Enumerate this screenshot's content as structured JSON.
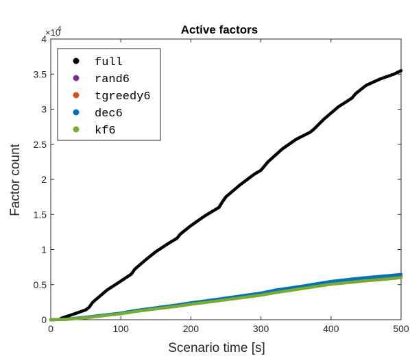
{
  "chart_data": {
    "type": "line",
    "title": "Active factors",
    "xlabel": "Scenario time [s]",
    "ylabel": "Factor count",
    "xlim": [
      0,
      500
    ],
    "ylim": [
      0,
      4
    ],
    "y_multiplier": "×10",
    "y_multiplier_exp": "4",
    "xticks": [
      0,
      100,
      200,
      300,
      400,
      500
    ],
    "yticks": [
      0,
      0.5,
      1,
      1.5,
      2,
      2.5,
      3,
      3.5,
      4
    ],
    "ytick_labels": [
      "0",
      "0.5",
      "1",
      "1.5",
      "2",
      "2.5",
      "3",
      "3.5",
      "4"
    ],
    "legend_position": "top-left",
    "grid": false,
    "series": [
      {
        "name": "full",
        "color": "#000000",
        "x": [
          15,
          30,
          50,
          55,
          60,
          80,
          100,
          115,
          120,
          135,
          150,
          170,
          180,
          185,
          200,
          220,
          240,
          245,
          250,
          270,
          290,
          300,
          310,
          330,
          350,
          370,
          375,
          390,
          410,
          430,
          435,
          450,
          470,
          490,
          500
        ],
        "y": [
          0.02,
          0.07,
          0.14,
          0.18,
          0.25,
          0.42,
          0.55,
          0.65,
          0.72,
          0.85,
          0.97,
          1.1,
          1.16,
          1.22,
          1.34,
          1.48,
          1.6,
          1.68,
          1.75,
          1.92,
          2.07,
          2.13,
          2.25,
          2.43,
          2.57,
          2.67,
          2.71,
          2.86,
          3.03,
          3.16,
          3.22,
          3.34,
          3.43,
          3.5,
          3.55
        ]
      },
      {
        "name": "rand6",
        "color": "#7e2f8e",
        "x": [
          0,
          20,
          50,
          100,
          120,
          150,
          180,
          200,
          240,
          300,
          320,
          340,
          360,
          400,
          430,
          450,
          480,
          500
        ],
        "y": [
          0,
          0.005,
          0.03,
          0.09,
          0.12,
          0.16,
          0.2,
          0.23,
          0.28,
          0.36,
          0.4,
          0.43,
          0.46,
          0.52,
          0.55,
          0.57,
          0.6,
          0.62
        ]
      },
      {
        "name": "tgreedy6",
        "color": "#d95319",
        "x": [
          0,
          20,
          50,
          100,
          120,
          150,
          180,
          200,
          240,
          300,
          320,
          340,
          360,
          400,
          430,
          450,
          480,
          500
        ],
        "y": [
          0,
          0.005,
          0.03,
          0.09,
          0.12,
          0.16,
          0.2,
          0.23,
          0.28,
          0.36,
          0.4,
          0.43,
          0.46,
          0.52,
          0.55,
          0.57,
          0.6,
          0.62
        ]
      },
      {
        "name": "dec6",
        "color": "#0072bd",
        "x": [
          0,
          20,
          50,
          100,
          120,
          150,
          180,
          200,
          240,
          300,
          320,
          340,
          360,
          400,
          430,
          450,
          480,
          500
        ],
        "y": [
          0,
          0.006,
          0.035,
          0.095,
          0.13,
          0.17,
          0.21,
          0.24,
          0.295,
          0.38,
          0.42,
          0.45,
          0.48,
          0.545,
          0.58,
          0.6,
          0.625,
          0.645
        ]
      },
      {
        "name": "kf6",
        "color": "#77ac30",
        "x": [
          0,
          20,
          50,
          100,
          120,
          150,
          180,
          200,
          240,
          300,
          320,
          340,
          360,
          400,
          430,
          450,
          480,
          500
        ],
        "y": [
          0,
          0.004,
          0.028,
          0.085,
          0.115,
          0.155,
          0.19,
          0.22,
          0.27,
          0.35,
          0.385,
          0.415,
          0.445,
          0.505,
          0.535,
          0.555,
          0.58,
          0.6
        ]
      }
    ]
  }
}
